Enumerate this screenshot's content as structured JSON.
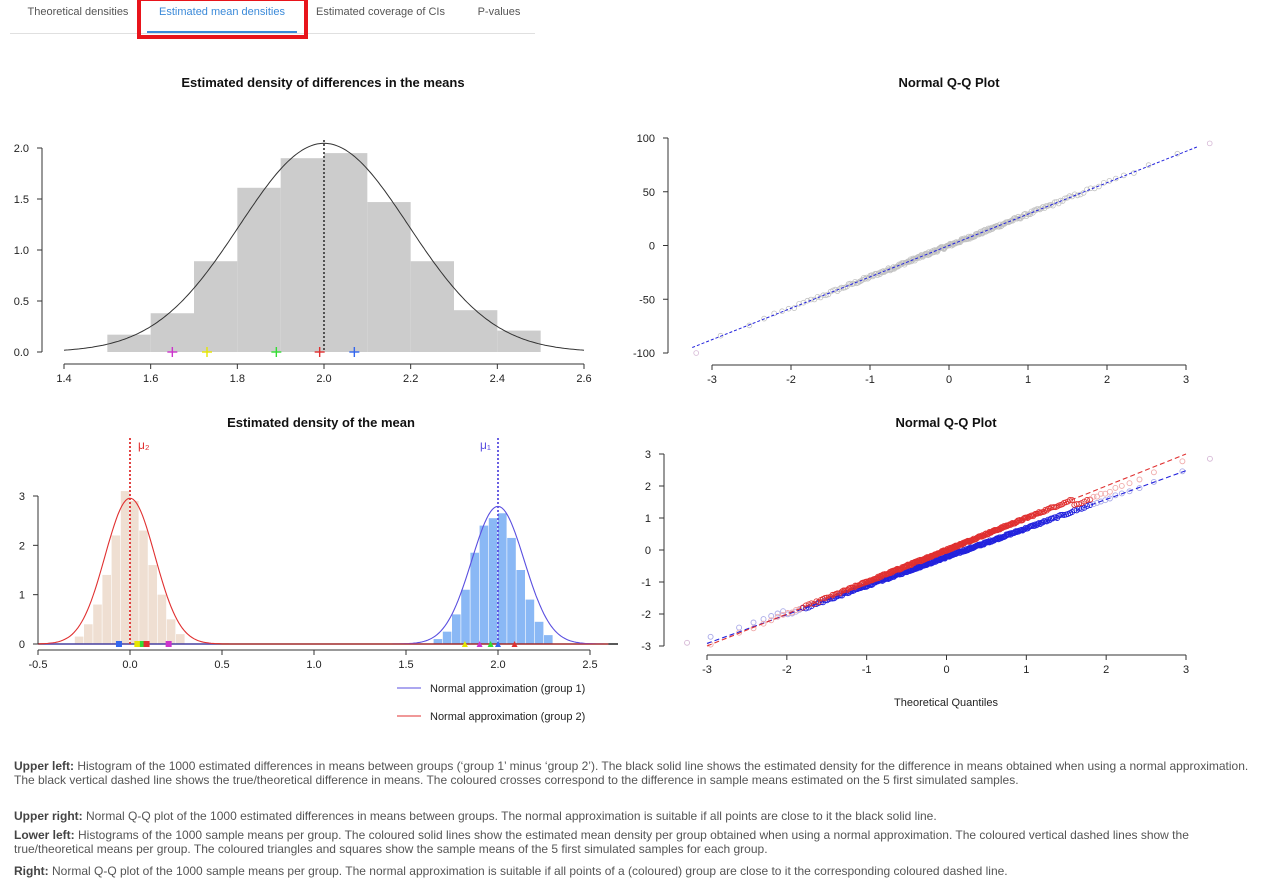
{
  "tabs": [
    {
      "label": "Theoretical densities",
      "active": false
    },
    {
      "label": "Estimated mean densities",
      "active": true
    },
    {
      "label": "Estimated coverage of CIs",
      "active": false
    },
    {
      "label": "P-values",
      "active": false
    }
  ],
  "colors": {
    "accent": "#3b8ad9",
    "highlight": "#e8141b",
    "group1": "#5a4fe0",
    "group2": "#e03030",
    "hist_gray": "#cccccc",
    "hist_blue": "#8ab8f5",
    "hist_beige": "#efdfd2"
  },
  "chart_data": [
    {
      "type": "bar",
      "title": "Estimated density of differences in the means",
      "xlabel": "",
      "ylabel": "",
      "xlim": [
        1.4,
        2.6
      ],
      "ylim": [
        0,
        2.0
      ],
      "xticks": [
        "1.4",
        "1.6",
        "1.8",
        "2.0",
        "2.2",
        "2.4",
        "2.6"
      ],
      "yticks": [
        "0.0",
        "0.5",
        "1.0",
        "1.5",
        "2.0"
      ],
      "bins": [
        [
          1.5,
          1.6,
          0.17
        ],
        [
          1.6,
          1.7,
          0.38
        ],
        [
          1.7,
          1.8,
          0.89
        ],
        [
          1.8,
          1.9,
          1.61
        ],
        [
          1.9,
          2.0,
          1.9
        ],
        [
          2.0,
          2.1,
          1.95
        ],
        [
          2.1,
          2.2,
          1.47
        ],
        [
          2.2,
          2.3,
          0.89
        ],
        [
          2.3,
          2.4,
          0.41
        ],
        [
          2.4,
          2.5,
          0.21
        ]
      ],
      "density_mean": 2.0,
      "density_sd": 0.195,
      "true_difference": 2.0,
      "sample_differences": [
        {
          "value": 1.65,
          "color": "#cc33cc"
        },
        {
          "value": 1.73,
          "color": "#e6e600"
        },
        {
          "value": 1.89,
          "color": "#33dd33"
        },
        {
          "value": 1.99,
          "color": "#e03030"
        },
        {
          "value": 2.07,
          "color": "#3366ee"
        }
      ]
    },
    {
      "type": "scatter",
      "title": "Normal Q-Q Plot",
      "xlim": [
        -3.3,
        3.3
      ],
      "ylim": [
        -100,
        100
      ],
      "xticks": [
        "-3",
        "-2",
        "-1",
        "0",
        "1",
        "2",
        "3"
      ],
      "yticks": [
        "-100",
        "-50",
        "0",
        "50",
        "100"
      ],
      "slope": 29.2,
      "intercept": 0.0,
      "n": 1000,
      "min": -100,
      "max": 95
    },
    {
      "type": "bar",
      "title": "Estimated density of the mean",
      "xlim": [
        -0.5,
        2.6
      ],
      "ylim": [
        0,
        3.5
      ],
      "xticks": [
        "-0.5",
        "0.0",
        "0.5",
        "1.0",
        "1.5",
        "2.0",
        "2.5"
      ],
      "yticks": [
        "0",
        "1",
        "2",
        "3"
      ],
      "mu_labels": [
        "μ₂",
        "μ₁"
      ],
      "group1": {
        "mean": 2.0,
        "sd": 0.143,
        "true_mean": 2.0,
        "color": "#5a4fe0",
        "bins": [
          [
            1.65,
            1.7,
            0.1
          ],
          [
            1.7,
            1.75,
            0.25
          ],
          [
            1.75,
            1.8,
            0.6
          ],
          [
            1.8,
            1.85,
            1.1
          ],
          [
            1.85,
            1.9,
            1.85
          ],
          [
            1.9,
            1.95,
            2.4
          ],
          [
            1.95,
            2.0,
            2.55
          ],
          [
            2.0,
            2.05,
            2.65
          ],
          [
            2.05,
            2.1,
            2.15
          ],
          [
            2.1,
            2.15,
            1.5
          ],
          [
            2.15,
            2.2,
            0.9
          ],
          [
            2.2,
            2.25,
            0.45
          ],
          [
            2.25,
            2.3,
            0.18
          ]
        ],
        "sample_means": [
          {
            "value": 1.82,
            "color": "#e6e600"
          },
          {
            "value": 1.9,
            "color": "#cc33cc"
          },
          {
            "value": 1.96,
            "color": "#33dd33"
          },
          {
            "value": 2.0,
            "color": "#3366ee"
          },
          {
            "value": 2.09,
            "color": "#e03030"
          }
        ]
      },
      "group2": {
        "mean": 0.0,
        "sd": 0.135,
        "true_mean": 0.0,
        "color": "#e03030",
        "bins": [
          [
            -0.3,
            -0.25,
            0.15
          ],
          [
            -0.25,
            -0.2,
            0.4
          ],
          [
            -0.2,
            -0.15,
            0.8
          ],
          [
            -0.15,
            -0.1,
            1.4
          ],
          [
            -0.1,
            -0.05,
            2.2
          ],
          [
            -0.05,
            0.0,
            3.1
          ],
          [
            0.0,
            0.05,
            2.9
          ],
          [
            0.05,
            0.1,
            2.3
          ],
          [
            0.1,
            0.15,
            1.6
          ],
          [
            0.15,
            0.2,
            1.0
          ],
          [
            0.2,
            0.25,
            0.5
          ],
          [
            0.25,
            0.3,
            0.2
          ]
        ],
        "sample_means": [
          {
            "value": -0.06,
            "color": "#3366ee"
          },
          {
            "value": 0.04,
            "color": "#e6e600"
          },
          {
            "value": 0.07,
            "color": "#33dd33"
          },
          {
            "value": 0.09,
            "color": "#e03030"
          },
          {
            "value": 0.21,
            "color": "#cc33cc"
          }
        ]
      },
      "legend": [
        "Normal approximation (group 1)",
        "Normal approximation (group 2)"
      ]
    },
    {
      "type": "scatter",
      "title": "Normal Q-Q Plot",
      "xlabel": "Theoretical Quantiles",
      "xlim": [
        -3.3,
        3.3
      ],
      "ylim": [
        -3,
        3
      ],
      "xticks": [
        "-3",
        "-2",
        "-1",
        "0",
        "1",
        "2",
        "3"
      ],
      "yticks": [
        "-3",
        "-2",
        "-1",
        "0",
        "1",
        "2",
        "3"
      ],
      "series": [
        {
          "color": "#2222dd",
          "slope": 0.9,
          "intercept": -0.22
        },
        {
          "color": "#e03030",
          "slope": 1.0,
          "intercept": 0.0
        }
      ]
    }
  ],
  "captions": [
    {
      "label": "Upper left:",
      "text": " Histogram of the 1000 estimated differences in means between groups (‘group 1’ minus ‘group 2’). The black solid line shows the estimated density for the difference in means obtained when using a normal approximation. The black vertical dashed line shows the true/theoretical difference in means. The coloured crosses correspond to the difference in sample means estimated on the 5 first simulated samples."
    },
    {
      "label": "Upper right:",
      "text": " Normal Q-Q plot of the 1000 estimated differences in means between groups. The normal approximation is suitable if all points are close to it the black solid line."
    },
    {
      "label": "Lower left:",
      "text": " Histograms of the 1000 sample means per group. The coloured solid lines show the estimated mean density per group obtained when using a normal approximation. The coloured vertical dashed lines show the true/theoretical means per group. The coloured triangles and squares show the sample means of the 5 first simulated samples for each group."
    },
    {
      "label": "Right:",
      "text": " Normal Q-Q plot of the 1000 sample means per group. The normal approximation is suitable if all points of a (coloured) group are close to it the corresponding coloured dashed line."
    }
  ]
}
